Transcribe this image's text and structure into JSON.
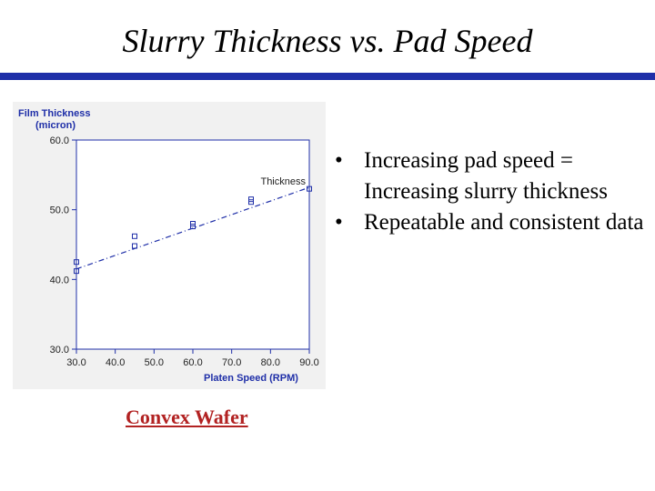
{
  "slide": {
    "title": "Slurry Thickness vs. Pad Speed",
    "bullets": [
      "Increasing pad speed = Increasing slurry thickness",
      "Repeatable and consistent data"
    ],
    "caption": "Convex Wafer",
    "accent_color": "#1f2fa8",
    "caption_color": "#b22222"
  },
  "chart_data": {
    "type": "scatter",
    "ylabel": [
      "Film Thickness",
      "(micron)"
    ],
    "xlabel": "Platen Speed (RPM)",
    "xlim": [
      30,
      90
    ],
    "ylim": [
      30,
      60
    ],
    "x_ticks": [
      "30.0",
      "40.0",
      "50.0",
      "60.0",
      "70.0",
      "80.0",
      "90.0"
    ],
    "y_ticks": [
      "60.0",
      "50.0",
      "40.0",
      "30.0"
    ],
    "grid": false,
    "series": [
      {
        "name": "Thickness",
        "marker": "square",
        "color": "#1f2fa8",
        "points": [
          [
            30,
            42.5
          ],
          [
            30,
            41.2
          ],
          [
            45,
            46.2
          ],
          [
            45,
            44.8
          ],
          [
            60,
            48.0
          ],
          [
            60,
            47.6
          ],
          [
            75,
            51.5
          ],
          [
            75,
            51.1
          ],
          [
            90,
            53.0
          ]
        ]
      }
    ],
    "fit_line": {
      "x": [
        30,
        90
      ],
      "y": [
        41.5,
        53.2
      ],
      "color": "#1f2fa8",
      "style": "dash-dot"
    }
  }
}
